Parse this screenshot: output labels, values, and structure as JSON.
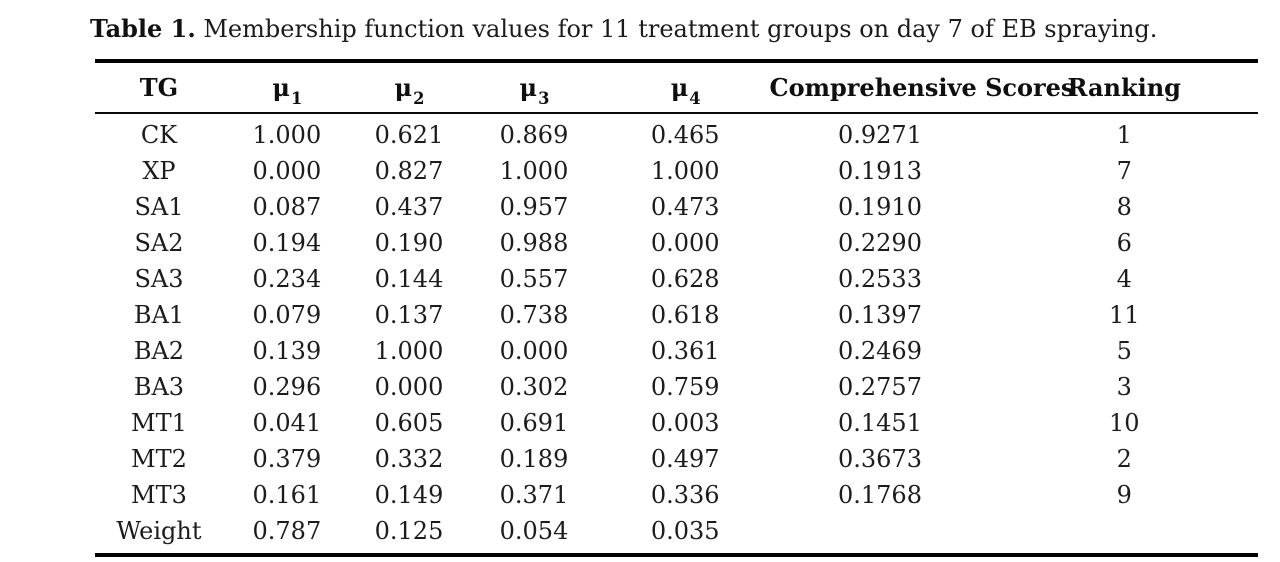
{
  "caption": {
    "label": "Table 1.",
    "text": "Membership function values for 11 treatment groups on day 7 of EB spraying."
  },
  "table": {
    "columns": [
      {
        "label": "TG"
      },
      {
        "label": "μ",
        "sub": "1"
      },
      {
        "label": "μ",
        "sub": "2"
      },
      {
        "label": "μ",
        "sub": "3"
      },
      {
        "label": "μ",
        "sub": "4"
      },
      {
        "label": "Comprehensive Scores"
      },
      {
        "label": "Ranking"
      }
    ],
    "rows": [
      [
        "CK",
        "1.000",
        "0.621",
        "0.869",
        "0.465",
        "0.9271",
        "1"
      ],
      [
        "XP",
        "0.000",
        "0.827",
        "1.000",
        "1.000",
        "0.1913",
        "7"
      ],
      [
        "SA1",
        "0.087",
        "0.437",
        "0.957",
        "0.473",
        "0.1910",
        "8"
      ],
      [
        "SA2",
        "0.194",
        "0.190",
        "0.988",
        "0.000",
        "0.2290",
        "6"
      ],
      [
        "SA3",
        "0.234",
        "0.144",
        "0.557",
        "0.628",
        "0.2533",
        "4"
      ],
      [
        "BA1",
        "0.079",
        "0.137",
        "0.738",
        "0.618",
        "0.1397",
        "11"
      ],
      [
        "BA2",
        "0.139",
        "1.000",
        "0.000",
        "0.361",
        "0.2469",
        "5"
      ],
      [
        "BA3",
        "0.296",
        "0.000",
        "0.302",
        "0.759",
        "0.2757",
        "3"
      ],
      [
        "MT1",
        "0.041",
        "0.605",
        "0.691",
        "0.003",
        "0.1451",
        "10"
      ],
      [
        "MT2",
        "0.379",
        "0.332",
        "0.189",
        "0.497",
        "0.3673",
        "2"
      ],
      [
        "MT3",
        "0.161",
        "0.149",
        "0.371",
        "0.336",
        "0.1768",
        "9"
      ],
      [
        "Weight",
        "0.787",
        "0.125",
        "0.054",
        "0.035",
        "",
        ""
      ]
    ]
  }
}
